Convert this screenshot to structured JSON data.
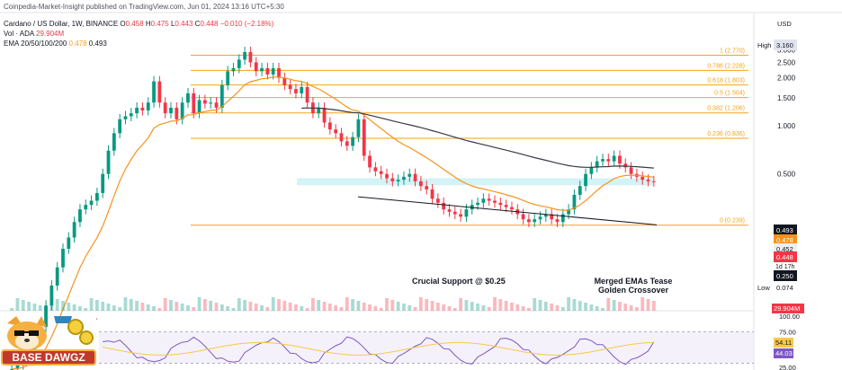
{
  "header": {
    "source": "Coinpedia-Market-Insight published on TradingView.com, Jun 01, 2024 13:16 UTC+5:30",
    "symbol_line": {
      "name": "Cardano / US Dollar, 1W, BINANCE",
      "open_label": "O",
      "open": "0.458",
      "high_label": "H",
      "high": "0.475",
      "low_label": "L",
      "low": "0.443",
      "close_label": "C",
      "close": "0.448",
      "change": "−0.010 (−2.18%)"
    },
    "vol_line": {
      "label": "Vol · ADA",
      "value": "29.904M"
    },
    "ema_line": {
      "label": "EMA 20/50/100/200",
      "v1": "0.478",
      "v2": "0.493"
    }
  },
  "currency": "USD",
  "annotations": {
    "support": "Crucial Support @ $0.25",
    "ema_text_1": "Merged EMAs Tease",
    "ema_text_2": "Golden Crossover"
  },
  "logo_text": "BASE DAWGZ",
  "colors": {
    "up": "#089981",
    "down": "#f23645",
    "fib": "#f7a21b",
    "ema_orange": "#f7931a",
    "ema_dark": "#363a45",
    "rsi": "#7e57c2",
    "zone": "#9ee5ec"
  },
  "chart_data": {
    "type": "candlestick",
    "title": "Cardano / US Dollar, 1W, BINANCE",
    "y_scale": "log",
    "y_ticks": [
      "3.000",
      "2.500",
      "2.000",
      "1.500",
      "1.000",
      "0.500"
    ],
    "price_labels": {
      "high_label": "High",
      "high": "3.160",
      "low_label": "Low",
      "low": "0.074",
      "ema_a": "0.493",
      "ema_b": "0.478",
      "p1": "0.452",
      "close": "0.448",
      "countdown": "1d 17h",
      "support": "0.250",
      "volume": "29.904M"
    },
    "fib_levels": [
      {
        "ratio": "1",
        "price": "2.770",
        "label": "1 (2.770)"
      },
      {
        "ratio": "0.786",
        "price": "2.228",
        "label": "0.786 (2.228)"
      },
      {
        "ratio": "0.618",
        "price": "1.803",
        "label": "0.618 (1.803)"
      },
      {
        "ratio": "0.5",
        "price": "1.504",
        "label": "0.5 (1.504)"
      },
      {
        "ratio": "0.382",
        "price": "1.206",
        "label": "0.382 (1.206)"
      },
      {
        "ratio": "0.236",
        "price": "0.836",
        "label": "0.236 (0.836)"
      },
      {
        "ratio": "0",
        "price": "0.239",
        "label": "0 (0.239)"
      }
    ],
    "rsi": {
      "ticks": [
        "100.00",
        "75.00",
        "25.00"
      ],
      "value": "54.11",
      "ma": "44.03"
    },
    "price_path": [
      0.03,
      0.032,
      0.035,
      0.04,
      0.045,
      0.055,
      0.075,
      0.1,
      0.13,
      0.17,
      0.2,
      0.25,
      0.3,
      0.32,
      0.34,
      0.38,
      0.5,
      0.7,
      0.9,
      1.1,
      1.15,
      1.2,
      1.3,
      1.25,
      1.4,
      1.9,
      1.4,
      1.2,
      1.3,
      1.1,
      1.4,
      1.6,
      1.2,
      1.45,
      1.38,
      1.4,
      1.3,
      1.8,
      2.2,
      2.3,
      2.6,
      2.9,
      2.5,
      2.2,
      2.3,
      2.1,
      2.3,
      2.0,
      1.8,
      1.7,
      1.6,
      1.75,
      1.4,
      1.2,
      1.3,
      1.05,
      0.95,
      0.9,
      0.8,
      0.75,
      0.85,
      1.1,
      0.65,
      0.55,
      0.52,
      0.5,
      0.47,
      0.45,
      0.46,
      0.48,
      0.5,
      0.45,
      0.42,
      0.4,
      0.35,
      0.33,
      0.3,
      0.29,
      0.28,
      0.27,
      0.3,
      0.32,
      0.33,
      0.35,
      0.34,
      0.33,
      0.32,
      0.31,
      0.3,
      0.28,
      0.26,
      0.25,
      0.26,
      0.27,
      0.28,
      0.26,
      0.25,
      0.28,
      0.3,
      0.37,
      0.42,
      0.5,
      0.55,
      0.6,
      0.62,
      0.6,
      0.65,
      0.58,
      0.55,
      0.5,
      0.48,
      0.46,
      0.45,
      0.448
    ]
  }
}
